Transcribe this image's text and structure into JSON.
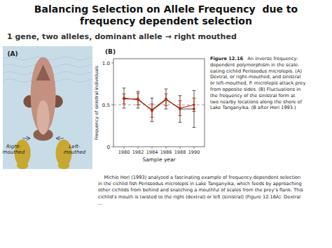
{
  "chart_data": {
    "type": "line",
    "title": "Balancing Selection on Allele Frequency  due to\nfrequency dependent selection",
    "subtitle": "1 gene, two alleles, dominant allele → right mouthed",
    "x_label": "Sample year",
    "y_label": "Frequency of sinistral individuals",
    "x": [
      1980,
      1982,
      1984,
      1986,
      1988,
      1990
    ],
    "xlim": [
      1978.5,
      1991.5
    ],
    "xticks": [
      1980,
      1982,
      1984,
      1986,
      1988,
      1990
    ],
    "ylim": [
      0,
      1.05
    ],
    "yticks": [
      0,
      0.5,
      {
        "value": 1.0,
        "label": "1.0"
      }
    ],
    "hline": {
      "y": 0.5,
      "color": "#888888",
      "line_style": "dashed"
    },
    "series": [
      {
        "color": "#cc2200",
        "marker": "circle",
        "values": [
          0.57,
          0.57,
          0.43,
          0.56,
          0.46,
          0.5
        ],
        "errors": [
          0.06,
          0.07,
          0.08,
          0.07,
          0.09,
          0.08
        ]
      },
      {
        "color": "#444444",
        "marker": "circle",
        "values": [
          0.58,
          0.56,
          0.44,
          0.57,
          0.45,
          0.45
        ],
        "errors": [
          0.12,
          0.1,
          0.14,
          0.12,
          0.16,
          0.22
        ]
      }
    ],
    "annotations": [
      "(A)",
      "(B)",
      "Right-\nmouthed",
      "Left-\nmouthed",
      "Figure 12.16",
      "   An inverse frequency-\ndependent polymorphism in the scale-\neating cichlid Perissodus microlepis. (A)\nDextral, or right-mouthed, and sinistral\nor left-mouthed, P. microlepis attack prey\nfrom opposite sides. (B) Fluctuations in\nthe frequency of the sinistral form at\ntwo nearby locations along the shore of\nLake Tanganyika. (B after Hori 1993.)",
      "    Michio Hori (1993) analyzed a fascinating example of frequency-dependent selection\nin the cichlid fish Perissodus microlepis in Lake Tanganyika, which feeds by approaching\nother cichlids from behind and snatching a mouthful of scales from the prey’s flank. This\ncichlid’s mouth is twisted to the right (dextral) or left (sinistral) (Figure 12.16A). Dextral\n..."
    ]
  }
}
